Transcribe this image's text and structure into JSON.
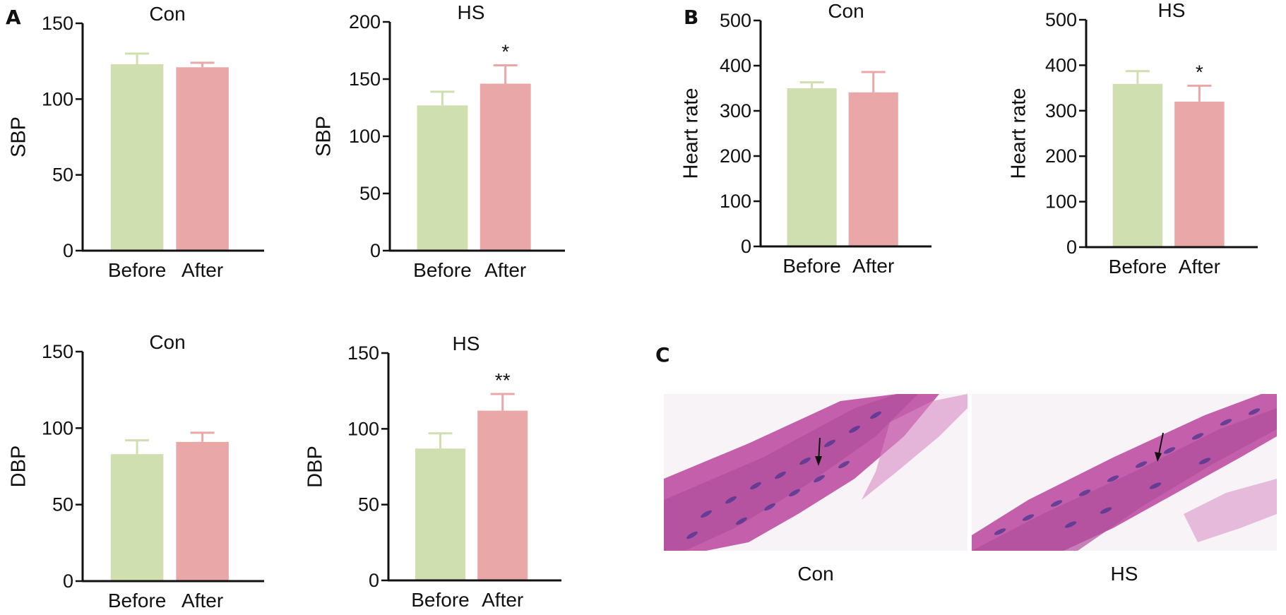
{
  "panel_labels": {
    "a": "A",
    "b": "B",
    "c": "C"
  },
  "colors": {
    "before": "#cfdfb0",
    "after": "#e9a7a8",
    "axis": "#111111",
    "tissue": "#c05aa8",
    "nuclei": "#4a3590"
  },
  "chart_data": [
    {
      "type": "bar",
      "title": "Con",
      "ylabel": "SBP",
      "categories": [
        "Before",
        "After"
      ],
      "values": [
        123,
        121
      ],
      "errors": [
        7,
        3
      ],
      "ylim": [
        0,
        150
      ],
      "yticks": [
        0,
        50,
        100,
        150
      ],
      "annotations": [
        "",
        ""
      ]
    },
    {
      "type": "bar",
      "title": "HS",
      "ylabel": "SBP",
      "categories": [
        "Before",
        "After"
      ],
      "values": [
        127,
        146
      ],
      "errors": [
        12,
        16
      ],
      "ylim": [
        0,
        200
      ],
      "yticks": [
        0,
        50,
        100,
        150,
        200
      ],
      "annotations": [
        "",
        "*"
      ]
    },
    {
      "type": "bar",
      "title": "Con",
      "ylabel": "Heart rate",
      "categories": [
        "Before",
        "After"
      ],
      "values": [
        350,
        341
      ],
      "errors": [
        13,
        45
      ],
      "ylim": [
        0,
        500
      ],
      "yticks": [
        0,
        100,
        200,
        300,
        400,
        500
      ],
      "annotations": [
        "",
        ""
      ]
    },
    {
      "type": "bar",
      "title": "HS",
      "ylabel": "Heart rate",
      "categories": [
        "Before",
        "After"
      ],
      "values": [
        359,
        320
      ],
      "errors": [
        28,
        35
      ],
      "ylim": [
        0,
        500
      ],
      "yticks": [
        0,
        100,
        200,
        300,
        400,
        500
      ],
      "annotations": [
        "",
        "*"
      ]
    },
    {
      "type": "bar",
      "title": "Con",
      "ylabel": "DBP",
      "categories": [
        "Before",
        "After"
      ],
      "values": [
        83,
        91
      ],
      "errors": [
        9,
        6
      ],
      "ylim": [
        0,
        150
      ],
      "yticks": [
        0,
        50,
        100,
        150
      ],
      "annotations": [
        "",
        ""
      ]
    },
    {
      "type": "bar",
      "title": "HS",
      "ylabel": "DBP",
      "categories": [
        "Before",
        "After"
      ],
      "values": [
        87,
        112
      ],
      "errors": [
        10,
        11
      ],
      "ylim": [
        0,
        150
      ],
      "yticks": [
        0,
        50,
        100,
        150
      ],
      "annotations": [
        "",
        "**"
      ]
    }
  ],
  "histology": {
    "images": [
      {
        "caption": "Con"
      },
      {
        "caption": "HS"
      }
    ]
  }
}
